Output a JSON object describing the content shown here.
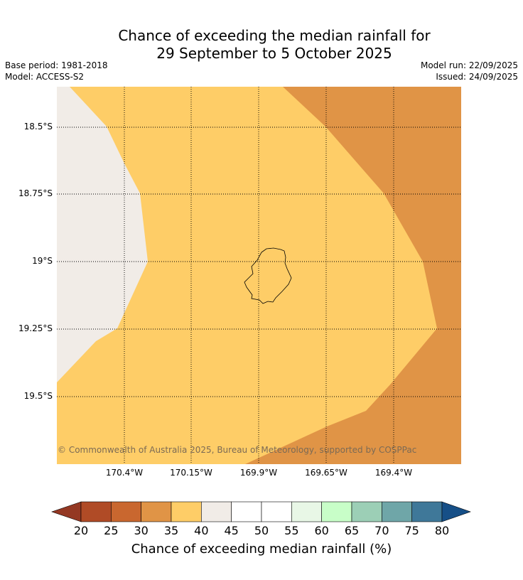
{
  "title": {
    "line1": "Chance of exceeding the median rainfall for",
    "line2": "29 September to 5 October 2025"
  },
  "meta": {
    "base_period": "Base period: 1981-2018",
    "model": "Model: ACCESS-S2",
    "model_run": "Model run: 22/09/2025",
    "issued": "Issued: 24/09/2025"
  },
  "map": {
    "lat_labels": [
      "18.5°S",
      "18.75°S",
      "19°S",
      "19.25°S",
      "19.5°S"
    ],
    "lon_labels": [
      "170.4°W",
      "170.15°W",
      "169.9°W",
      "169.65°W",
      "169.4°W"
    ],
    "copyright": "© Commonwealth of Australia 2025, Bureau of Meteorology, supported by COSPPac",
    "regions": [
      {
        "name": "40-45%",
        "color": "#f1ece7"
      },
      {
        "name": "35-40%",
        "color": "#fecd67"
      },
      {
        "name": "30-35%",
        "color": "#e09446"
      }
    ]
  },
  "colorbar": {
    "ticks": [
      "20",
      "25",
      "30",
      "35",
      "40",
      "45",
      "50",
      "55",
      "60",
      "65",
      "70",
      "75",
      "80"
    ],
    "colors": [
      "#b04b26",
      "#c9672f",
      "#e09446",
      "#fecd67",
      "#f1ece7",
      "#ffffff",
      "#ffffff",
      "#e8f7e6",
      "#c8fec8",
      "#9ccfb6",
      "#6fa6a8",
      "#3f7899"
    ],
    "under_color": "#943823",
    "over_color": "#164f87",
    "label": "Chance of exceeding median rainfall (%)"
  }
}
